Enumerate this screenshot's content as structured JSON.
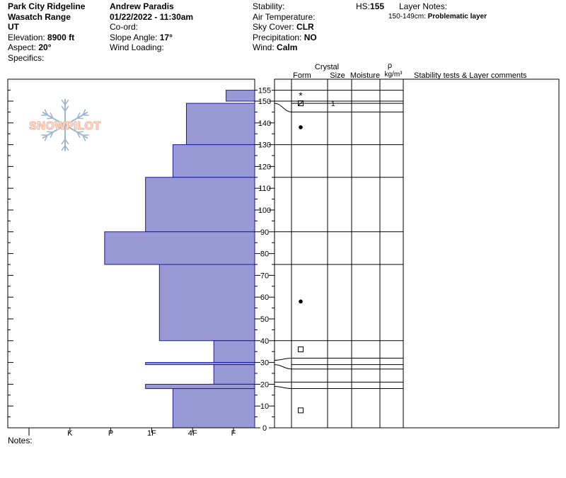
{
  "header": {
    "col1": {
      "location": "Park City Ridgeline",
      "range": "Wasatch Range",
      "state": "UT",
      "elevation_label": "Elevation:",
      "elevation_value": "8900 ft",
      "aspect_label": "Aspect:",
      "aspect_value": "20°",
      "specifics_label": "Specifics:"
    },
    "col2": {
      "observer": "Andrew Paradis",
      "datetime": "01/22/2022 - 11:30am",
      "coord_label": "Co-ord:",
      "slope_label": "Slope Angle:",
      "slope_value": "17°",
      "wind_loading_label": "Wind Loading:"
    },
    "col3": {
      "stability_label": "Stability:",
      "air_temp_label": "Air Temperature:",
      "sky_label": "Sky Cover:",
      "sky_value": "CLR",
      "precip_label": "Precipitation:",
      "precip_value": "NO",
      "wind_label": "Wind:",
      "wind_value": "Calm"
    },
    "col4": {
      "hs_label": "HS:",
      "hs_value": "155",
      "layer_notes_label": "Layer Notes:",
      "layer_note_range": "150-149cm:",
      "layer_note_text": "Problematic layer"
    }
  },
  "logo": {
    "text": "SNOWPILOT"
  },
  "notes_label": "Notes:",
  "table_headers": {
    "crystal": "Crystal",
    "form": "Form",
    "size": "Size",
    "moisture": "Moisture",
    "rho": "ρ",
    "density_unit": "kg/m³",
    "comments": "Stability tests & Layer comments"
  },
  "colors": {
    "fill": "#9999d6",
    "stroke": "#1a1a9c",
    "logo": "#f0b8a0",
    "flake": "#9fb6cc"
  },
  "chart_data": {
    "type": "snow_profile",
    "hardness_scale": [
      "I",
      "K",
      "P",
      "1F",
      "4F",
      "F"
    ],
    "hardness_note": "hardness index 0=F, 1=4F, 2=1F, 3=P, 4=K, 5=I (bar extends left from F)",
    "ylim": [
      0,
      160
    ],
    "y_ticks": [
      0,
      10,
      20,
      30,
      40,
      50,
      60,
      70,
      80,
      90,
      100,
      110,
      120,
      130,
      140,
      150,
      155
    ],
    "layers": [
      {
        "top": 155,
        "bottom": 150,
        "hardness": 0.7
      },
      {
        "top": 149,
        "bottom": 130,
        "hardness": 1.67
      },
      {
        "top": 130,
        "bottom": 115,
        "hardness": 2.0
      },
      {
        "top": 115,
        "bottom": 90,
        "hardness": 2.67
      },
      {
        "top": 90,
        "bottom": 75,
        "hardness": 3.67
      },
      {
        "top": 75,
        "bottom": 40,
        "hardness": 2.33
      },
      {
        "top": 40,
        "bottom": 30,
        "hardness": 1.0
      },
      {
        "top": 30,
        "bottom": 29,
        "hardness": 2.67
      },
      {
        "top": 29,
        "bottom": 20,
        "hardness": 1.0
      },
      {
        "top": 20,
        "bottom": 18,
        "hardness": 2.67
      },
      {
        "top": 18,
        "bottom": 0,
        "hardness": 2.0
      }
    ],
    "boundaries": [
      155,
      150,
      149,
      145,
      130,
      115,
      90,
      75,
      40,
      32,
      29,
      27,
      21,
      18
    ],
    "form_symbols": [
      {
        "height": 153,
        "symbol": "new-snow"
      },
      {
        "height": 149,
        "symbol": "surface-hoar-faceted"
      },
      {
        "height": 138,
        "symbol": "rounded"
      },
      {
        "height": 58,
        "symbol": "rounded"
      },
      {
        "height": 36,
        "symbol": "faceted"
      },
      {
        "height": 8,
        "symbol": "faceted"
      }
    ],
    "size_values": [
      {
        "height": 149,
        "value": "1"
      }
    ]
  }
}
